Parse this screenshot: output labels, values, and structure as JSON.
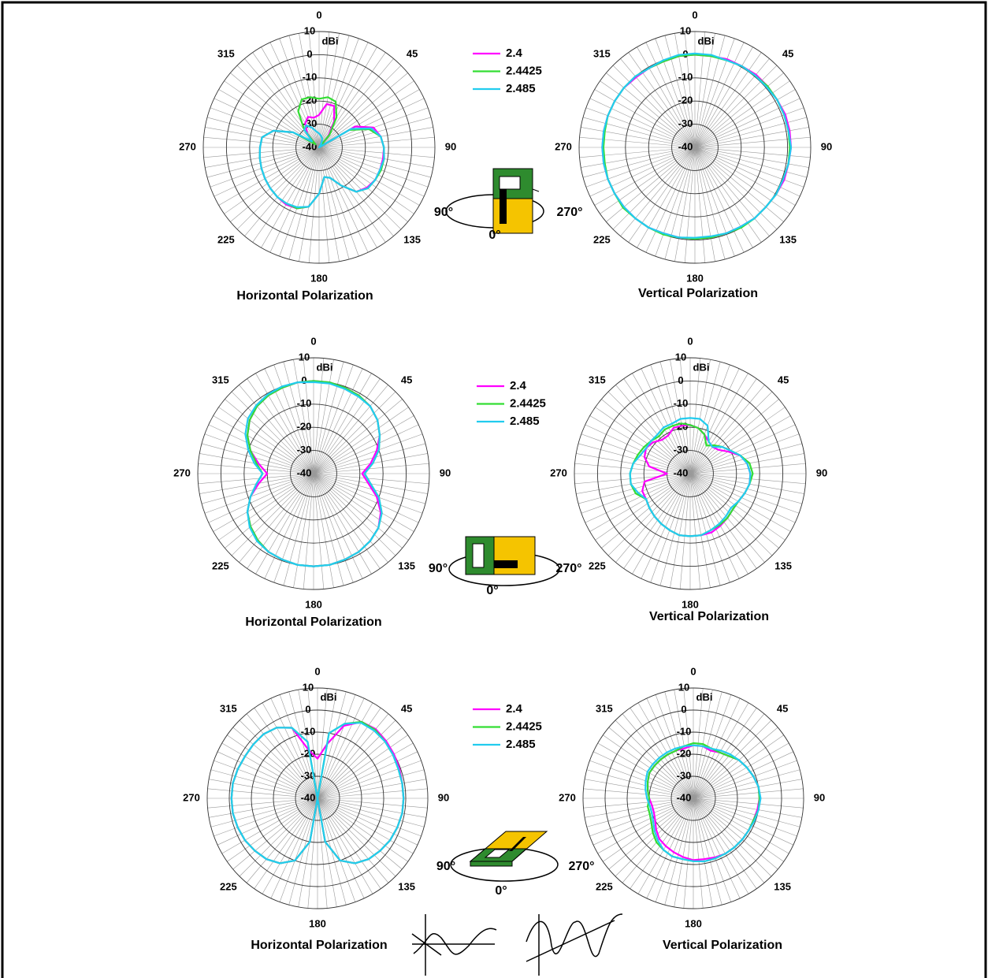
{
  "chart_data": [
    {
      "type": "polar",
      "caption": "Horizontal Polarization",
      "r_unit": "dBi",
      "rlim": [
        -40,
        10
      ],
      "rticks": [
        -40,
        -30,
        -20,
        -10,
        0,
        10
      ],
      "angle_ticks": [
        0,
        45,
        90,
        135,
        180,
        225,
        270,
        315
      ],
      "x": [
        0,
        10,
        20,
        30,
        40,
        50,
        60,
        70,
        80,
        90,
        100,
        110,
        120,
        130,
        140,
        150,
        160,
        170,
        180,
        190,
        200,
        210,
        220,
        230,
        240,
        250,
        260,
        270,
        280,
        290,
        300,
        310,
        320,
        330,
        340,
        350
      ],
      "series": [
        {
          "name": "2.4",
          "color": "#ff00ff",
          "values": [
            -26,
            -21,
            -21,
            -27,
            -34,
            -40,
            -22,
            -15,
            -13,
            -12,
            -12,
            -12,
            -12,
            -13,
            -15,
            -21,
            -26,
            -27,
            -20,
            -14,
            -12,
            -11.5,
            -12,
            -12.5,
            -13,
            -13.5,
            -14,
            -14.5,
            -15,
            -19,
            -27,
            -38,
            -32,
            -28,
            -26,
            -27
          ]
        },
        {
          "name": "2.4425",
          "color": "#33dd33",
          "values": [
            -19,
            -18,
            -19,
            -25,
            -33,
            -40,
            -25,
            -17,
            -13,
            -12,
            -11.5,
            -11.5,
            -12,
            -12.5,
            -15,
            -21,
            -26,
            -27,
            -20,
            -14,
            -12,
            -12,
            -12,
            -12.5,
            -13,
            -13.5,
            -14,
            -14.5,
            -15,
            -19,
            -27,
            -38,
            -30,
            -22,
            -18,
            -18
          ]
        },
        {
          "name": "2.485",
          "color": "#22ccee",
          "values": [
            -34,
            -35,
            -36,
            -38,
            -40,
            -40,
            -24,
            -16,
            -13,
            -12,
            -11.5,
            -12,
            -12,
            -12.5,
            -15,
            -21,
            -26,
            -27,
            -20,
            -14,
            -12.5,
            -12,
            -12,
            -12.5,
            -13,
            -13.5,
            -14,
            -14.5,
            -15,
            -19,
            -27,
            -36,
            -30,
            -29,
            -31,
            -33
          ]
        }
      ]
    },
    {
      "type": "polar",
      "caption": "Vertical Polarization",
      "r_unit": "dBi",
      "rlim": [
        -40,
        10
      ],
      "rticks": [
        -40,
        -30,
        -20,
        -10,
        0,
        10
      ],
      "angle_ticks": [
        0,
        45,
        90,
        135,
        180,
        225,
        270,
        315
      ],
      "x": [
        0,
        10,
        20,
        30,
        40,
        50,
        60,
        70,
        80,
        90,
        100,
        110,
        120,
        130,
        140,
        150,
        160,
        170,
        180,
        190,
        200,
        210,
        220,
        230,
        240,
        250,
        260,
        270,
        280,
        290,
        300,
        310,
        320,
        330,
        340,
        350
      ],
      "series": [
        {
          "color": "#ff00ff",
          "values": [
            0,
            0,
            0.5,
            0.5,
            1,
            1,
            1,
            1.5,
            1.5,
            1.5,
            1,
            1,
            0.5,
            0,
            0,
            -0.5,
            -0.5,
            -0.5,
            -0.5,
            -0.5,
            -0.5,
            0,
            0,
            0,
            0,
            0,
            0,
            0,
            0,
            0,
            0,
            0,
            -0.5,
            -0.5,
            -0.5,
            0
          ]
        },
        {
          "color": "#33dd33",
          "values": [
            0,
            0,
            0,
            0.5,
            0.5,
            1,
            1,
            1,
            1,
            1,
            1,
            0.5,
            0.5,
            0,
            0,
            0,
            -0.5,
            -0.5,
            -0.5,
            -0.5,
            0,
            0,
            0,
            0.5,
            0,
            0,
            -0.5,
            -0.5,
            -0.5,
            0,
            0,
            0,
            0,
            -0.5,
            -0.5,
            0
          ]
        },
        {
          "color": "#22ccee",
          "values": [
            0.5,
            0.5,
            0,
            0.5,
            0.5,
            0.5,
            1,
            1,
            1,
            1.5,
            1,
            0.5,
            0.5,
            0,
            0,
            -0.5,
            -0.5,
            -1,
            -1,
            -0.5,
            -0.5,
            0,
            0,
            0,
            0,
            0,
            0,
            0,
            0,
            0,
            0,
            0,
            0,
            -0.5,
            0,
            0.5
          ]
        }
      ]
    },
    {
      "type": "polar",
      "caption": "Horizontal Polarization",
      "r_unit": "dBi",
      "rlim": [
        -40,
        10
      ],
      "rticks": [
        -40,
        -30,
        -20,
        -10,
        0,
        10
      ],
      "angle_ticks": [
        0,
        45,
        90,
        135,
        180,
        225,
        270,
        315
      ],
      "x": [
        0,
        10,
        20,
        30,
        40,
        50,
        60,
        70,
        80,
        90,
        100,
        110,
        120,
        130,
        140,
        150,
        160,
        170,
        180,
        190,
        200,
        210,
        220,
        230,
        240,
        250,
        260,
        270,
        280,
        290,
        300,
        310,
        320,
        330,
        340,
        350
      ],
      "series": [
        {
          "name": "2.4",
          "color": "#ff00ff",
          "values": [
            0,
            0,
            -0.5,
            -1,
            -2,
            -4,
            -7,
            -11,
            -15,
            -19,
            -16,
            -11,
            -6.5,
            -3.5,
            -2,
            -1,
            -0.5,
            0,
            0,
            0,
            -0.5,
            -1,
            -2.5,
            -4.5,
            -7,
            -11,
            -16,
            -20,
            -16,
            -11,
            -7,
            -4,
            -2,
            -1,
            -0.5,
            0
          ]
        },
        {
          "name": "2.4425",
          "color": "#33dd33",
          "values": [
            0,
            0,
            -0.5,
            -1,
            -2,
            -4,
            -7,
            -10,
            -14,
            -18,
            -15,
            -10,
            -6,
            -3.5,
            -2,
            -1,
            -0.5,
            0,
            0,
            0,
            -0.5,
            -1,
            -2.5,
            -4.5,
            -7,
            -11,
            -15,
            -18,
            -15,
            -11,
            -7,
            -4,
            -2,
            -1,
            -0.5,
            0
          ]
        },
        {
          "name": "2.485",
          "color": "#22ccee",
          "values": [
            -0.5,
            -0.5,
            -1,
            -1.5,
            -2,
            -4,
            -7,
            -10,
            -14,
            -18,
            -15,
            -10,
            -6,
            -3.5,
            -2,
            -1,
            -0.5,
            0,
            0,
            0,
            -0.5,
            -1,
            -2,
            -4,
            -7,
            -11,
            -15,
            -18,
            -14,
            -10,
            -6,
            -3,
            -1.5,
            -0.5,
            0,
            0
          ]
        }
      ]
    },
    {
      "type": "polar",
      "caption": "Vertical Polarization",
      "r_unit": "dBi",
      "rlim": [
        -40,
        10
      ],
      "rticks": [
        -40,
        -30,
        -20,
        -10,
        0,
        10
      ],
      "angle_ticks": [
        0,
        45,
        90,
        135,
        180,
        225,
        270,
        315
      ],
      "x": [
        0,
        10,
        20,
        30,
        40,
        50,
        60,
        70,
        80,
        90,
        100,
        110,
        120,
        130,
        140,
        150,
        160,
        170,
        180,
        190,
        200,
        210,
        220,
        230,
        240,
        250,
        260,
        270,
        280,
        290,
        300,
        310,
        320,
        330,
        340,
        350
      ],
      "series": [
        {
          "color": "#ff00ff",
          "values": [
            -19,
            -20,
            -22,
            -24,
            -25,
            -24,
            -21,
            -17,
            -15,
            -14,
            -14,
            -15,
            -16,
            -16,
            -15,
            -14,
            -13,
            -13,
            -13,
            -13,
            -14,
            -15,
            -16,
            -17,
            -18,
            -18,
            -20,
            -30,
            -22,
            -19,
            -18,
            -19,
            -21,
            -21,
            -19,
            -19
          ]
        },
        {
          "color": "#33dd33",
          "values": [
            -19,
            -20,
            -22,
            -26,
            -24,
            -22,
            -20,
            -17,
            -14,
            -13,
            -14,
            -15,
            -16,
            -16,
            -15,
            -14.5,
            -14,
            -13,
            -13,
            -13,
            -14,
            -15,
            -16,
            -17,
            -18,
            -15,
            -14,
            -14,
            -15,
            -16,
            -17,
            -18,
            -19,
            -18,
            -18,
            -18
          ]
        },
        {
          "color": "#22ccee",
          "values": [
            -16,
            -16,
            -18,
            -24,
            -25,
            -22,
            -20,
            -17,
            -15,
            -14,
            -14,
            -15,
            -16,
            -17,
            -16,
            -15,
            -14,
            -13,
            -13,
            -13,
            -14,
            -15,
            -16,
            -17,
            -18,
            -16,
            -14,
            -14,
            -15,
            -17,
            -18,
            -18,
            -18,
            -17,
            -17,
            -16
          ]
        }
      ]
    },
    {
      "type": "polar",
      "caption": "Horizontal Polarization",
      "r_unit": "dBi",
      "rlim": [
        -40,
        10
      ],
      "rticks": [
        -40,
        -30,
        -20,
        -10,
        0,
        10
      ],
      "angle_ticks": [
        0,
        45,
        90,
        135,
        180,
        225,
        270,
        315
      ],
      "x": [
        0,
        10,
        20,
        30,
        40,
        50,
        60,
        70,
        80,
        90,
        100,
        110,
        120,
        130,
        140,
        150,
        160,
        170,
        180,
        190,
        200,
        210,
        220,
        230,
        240,
        250,
        260,
        270,
        280,
        290,
        300,
        310,
        320,
        330,
        340,
        350
      ],
      "series": [
        {
          "name": "2.4",
          "color": "#ff00ff",
          "values": [
            -22,
            -15,
            -5,
            0,
            1,
            0.5,
            0,
            -0.5,
            -1,
            -1,
            -1,
            -1.5,
            -2,
            -3,
            -4,
            -6,
            -10,
            -20,
            -40,
            -20,
            -10,
            -6,
            -4,
            -3,
            -2,
            -1.5,
            -1,
            -1,
            -1,
            -1.5,
            -2,
            -2,
            -2,
            -3,
            -6,
            -18
          ]
        },
        {
          "name": "2.4425",
          "color": "#33dd33",
          "values": [
            -40,
            -10,
            -4,
            0,
            0.5,
            0,
            -0.5,
            -1,
            -1,
            -1,
            -1,
            -1.5,
            -2,
            -3,
            -4,
            -6,
            -10,
            -20,
            -40,
            -20,
            -10,
            -6,
            -4,
            -3,
            -2,
            -1.5,
            -1,
            -1,
            -1,
            -1.5,
            -2,
            -2,
            -2,
            -3,
            -6,
            -14
          ]
        },
        {
          "name": "2.485",
          "color": "#22ccee",
          "values": [
            -40,
            -10,
            -4,
            -0.5,
            0,
            0,
            -0.5,
            -1,
            -1,
            -1,
            -1,
            -1.5,
            -2,
            -3,
            -4,
            -6,
            -10,
            -20,
            -40,
            -20,
            -10,
            -6,
            -4,
            -3,
            -2,
            -1.5,
            -1,
            -1,
            -1,
            -1.5,
            -2,
            -2,
            -2,
            -3,
            -6,
            -14
          ]
        }
      ]
    },
    {
      "type": "polar",
      "caption": "Vertical Polarization",
      "r_unit": "dBi",
      "rlim": [
        -40,
        10
      ],
      "rticks": [
        -40,
        -30,
        -20,
        -10,
        0,
        10
      ],
      "angle_ticks": [
        0,
        45,
        90,
        135,
        180,
        225,
        270,
        315
      ],
      "x": [
        0,
        10,
        20,
        30,
        40,
        50,
        60,
        70,
        80,
        90,
        100,
        110,
        120,
        130,
        140,
        150,
        160,
        170,
        180,
        190,
        200,
        210,
        220,
        230,
        240,
        250,
        260,
        270,
        280,
        290,
        300,
        310,
        320,
        330,
        340,
        350
      ],
      "series": [
        {
          "color": "#ff00ff",
          "values": [
            -16,
            -16,
            -17,
            -16,
            -15,
            -13,
            -12,
            -11,
            -10,
            -10,
            -10.5,
            -11,
            -11,
            -11,
            -11,
            -11,
            -11.5,
            -12,
            -12,
            -13,
            -14,
            -15,
            -16,
            -18,
            -20,
            -21,
            -21,
            -20,
            -19,
            -18,
            -17,
            -17,
            -17,
            -17,
            -17,
            -17
          ]
        },
        {
          "color": "#33dd33",
          "values": [
            -15,
            -15,
            -16,
            -16,
            -15,
            -13,
            -12,
            -11,
            -10,
            -10,
            -10,
            -11,
            -11,
            -11,
            -11,
            -11,
            -11,
            -11,
            -11.5,
            -12,
            -12,
            -13,
            -14,
            -16,
            -18,
            -19,
            -19,
            -20,
            -19,
            -18,
            -17,
            -17,
            -17,
            -17,
            -17,
            -16
          ]
        },
        {
          "color": "#22ccee",
          "values": [
            -16,
            -16,
            -16,
            -15,
            -14,
            -13,
            -12,
            -11,
            -10,
            -9.5,
            -10,
            -10.5,
            -11,
            -11,
            -11,
            -11,
            -11,
            -11,
            -11.5,
            -12,
            -12,
            -13,
            -15,
            -17,
            -19,
            -20,
            -20,
            -19,
            -18,
            -17,
            -16,
            -16,
            -16,
            -16,
            -16,
            -16
          ]
        }
      ]
    }
  ],
  "orientation_labels": [
    {
      "left": "90°",
      "right": "270°",
      "front": "0°"
    },
    {
      "left": "90°",
      "right": "270°",
      "front": "0°"
    },
    {
      "left": "90°",
      "right": "270°",
      "front": "0°"
    }
  ]
}
